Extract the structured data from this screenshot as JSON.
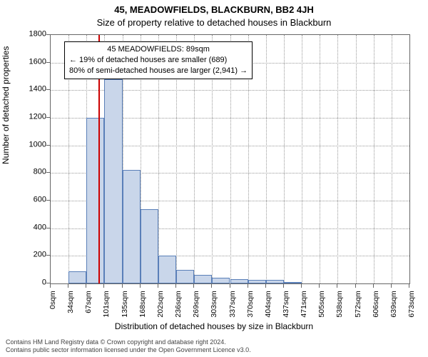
{
  "title": "45, MEADOWFIELDS, BLACKBURN, BB2 4JH",
  "subtitle": "Size of property relative to detached houses in Blackburn",
  "xlabel": "Distribution of detached houses by size in Blackburn",
  "ylabel": "Number of detached properties",
  "chart": {
    "type": "histogram",
    "background_color": "#ffffff",
    "plot_border_color": "#666666",
    "grid_color": "#999999",
    "bar_fill_color": "#c9d6ea",
    "bar_border_color": "#5a7fb8",
    "marker_line_color": "#cc0000",
    "marker_x_value": 89,
    "ylim": [
      0,
      1800
    ],
    "ytick_step": 200,
    "x_tick_step": 33.67,
    "x_tick_count": 21,
    "x_tick_suffix": "sqm",
    "yticks": [
      0,
      200,
      400,
      600,
      800,
      1000,
      1200,
      1400,
      1600,
      1800
    ],
    "xticks": [
      0,
      34,
      67,
      101,
      135,
      168,
      202,
      236,
      269,
      303,
      337,
      370,
      404,
      437,
      471,
      505,
      538,
      572,
      606,
      639,
      673
    ],
    "bars": [
      {
        "bin": 1,
        "value": 90
      },
      {
        "bin": 2,
        "value": 1200
      },
      {
        "bin": 3,
        "value": 1480
      },
      {
        "bin": 4,
        "value": 820
      },
      {
        "bin": 5,
        "value": 540
      },
      {
        "bin": 6,
        "value": 200
      },
      {
        "bin": 7,
        "value": 100
      },
      {
        "bin": 8,
        "value": 60
      },
      {
        "bin": 9,
        "value": 40
      },
      {
        "bin": 10,
        "value": 30
      },
      {
        "bin": 11,
        "value": 25
      },
      {
        "bin": 12,
        "value": 25
      },
      {
        "bin": 13,
        "value": 6
      }
    ],
    "title_fontsize": 13,
    "label_fontsize": 12,
    "tick_fontsize": 11
  },
  "annotation": {
    "line1": "45 MEADOWFIELDS: 89sqm",
    "line2": "← 19% of detached houses are smaller (689)",
    "line3": "80% of semi-detached houses are larger (2,941) →",
    "border_color": "#000000",
    "background_color": "#ffffff",
    "fontsize": 11
  },
  "footer": {
    "line1": "Contains HM Land Registry data © Crown copyright and database right 2024.",
    "line2": "Contains public sector information licensed under the Open Government Licence v3.0."
  }
}
